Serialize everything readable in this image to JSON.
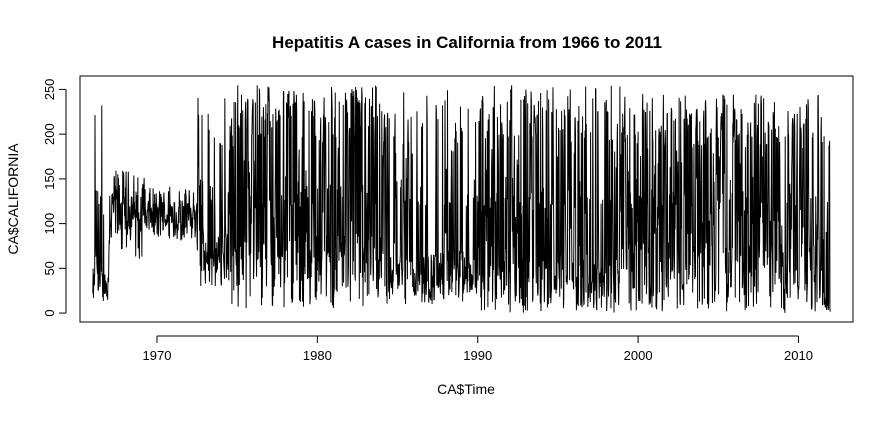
{
  "chart_data": {
    "type": "line",
    "title": "Hepatitis A cases in California from 1966 to 2011",
    "xlabel": "CA$Time",
    "ylabel": "CA$CALIFORNIA",
    "xlim": [
      1965.2,
      2013.4
    ],
    "ylim": [
      -10,
      265
    ],
    "x_ticks": [
      1970,
      1980,
      1990,
      2000,
      2010
    ],
    "x_tick_labels": [
      "1970",
      "1980",
      "1990",
      "2000",
      "2010"
    ],
    "y_ticks": [
      0,
      50,
      100,
      150,
      200,
      250
    ],
    "y_tick_labels": [
      "0",
      "50",
      "100",
      "150",
      "200",
      "250"
    ],
    "grid": false,
    "legend": "none",
    "line_color": "#000000",
    "series": [
      {
        "points_per_year": 52,
        "year_start": 1966,
        "phases": [
          {
            "from": 1966.0,
            "to": 1967.0,
            "base": [
              10,
              50
            ],
            "spike_max": 255,
            "spike_prob": 0.18
          },
          {
            "from": 1967.0,
            "to": 1969.2,
            "base": [
              60,
              160
            ],
            "spike_max": 165,
            "spike_prob": 0.0
          },
          {
            "from": 1969.2,
            "to": 1972.5,
            "base": [
              80,
              140
            ],
            "spike_max": 170,
            "spike_prob": 0.02
          },
          {
            "from": 1972.5,
            "to": 1974.5,
            "base": [
              30,
              90
            ],
            "spike_max": 250,
            "spike_prob": 0.12
          },
          {
            "from": 1974.5,
            "to": 1984.5,
            "base": [
              5,
              90
            ],
            "spike_max": 255,
            "spike_prob": 0.45
          },
          {
            "from": 1984.5,
            "to": 1990.0,
            "base": [
              10,
              70
            ],
            "spike_max": 250,
            "spike_prob": 0.22
          },
          {
            "from": 1990.0,
            "to": 1999.0,
            "base": [
              0,
              60
            ],
            "spike_max": 255,
            "spike_prob": 0.38
          },
          {
            "from": 1999.0,
            "to": 2011.5,
            "base": [
              0,
              80
            ],
            "spike_max": 245,
            "spike_prob": 0.4
          },
          {
            "from": 2011.5,
            "to": 2012.0,
            "base": [
              0,
              20
            ],
            "spike_max": 200,
            "spike_prob": 0.3
          }
        ]
      }
    ]
  }
}
